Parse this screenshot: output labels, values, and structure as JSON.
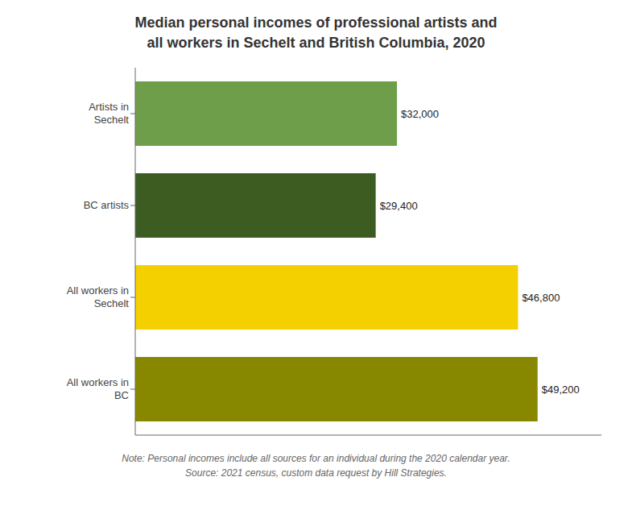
{
  "chart_data": {
    "type": "bar",
    "orientation": "horizontal",
    "title": "Median personal incomes of professional artists and\nall workers in Sechelt and British Columbia, 2020",
    "categories": [
      "Artists in\nSechelt",
      "BC artists",
      "All workers in\nSechelt",
      "All workers in\nBC"
    ],
    "values": [
      32000,
      29400,
      46800,
      49200
    ],
    "value_labels": [
      "$32,000",
      "$29,400",
      "$46,800",
      "$49,200"
    ],
    "data_labels": true,
    "colors": [
      "#6e9e4a",
      "#3d5c22",
      "#f5d000",
      "#888800"
    ],
    "xlim": [
      0,
      57000
    ],
    "tick_labels": "y",
    "grid": false,
    "annotations": [
      "Note: Personal incomes include all sources for an individual during the 2020 calendar year.",
      "Source: 2021 census, custom data request by Hill Strategies."
    ]
  }
}
